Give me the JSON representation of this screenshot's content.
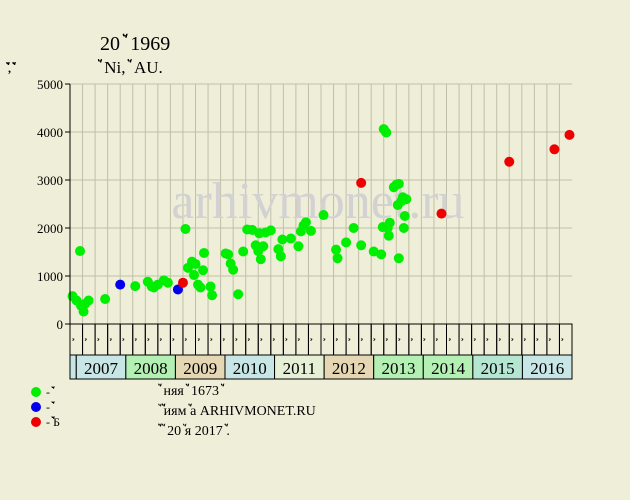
{
  "title_line1": "20 ꙽꙽꙽ 1969",
  "title_line2": "꙽꙽꙽ Ni, ꙽꙽꙽ AU.",
  "y_unit": "꙽꙽, ꙽꙽",
  "watermark": "arhivmonet.ru",
  "colors": {
    "background": "#efefd9",
    "grid": "#c0c0a8",
    "normal": "#00ee00",
    "auction": "#0000ee",
    "special": "#ee0000"
  },
  "legend": [
    {
      "color": "#00ee00",
      "label": "- ꙽꙽꙽"
    },
    {
      "color": "#0000ee",
      "label": "- ꙽꙽꙽"
    },
    {
      "color": "#ee0000",
      "label": "- ꙽꙽꙽꙽Б"
    }
  ],
  "info": [
    "꙽꙽ няя ꙽꙽ 1673 ꙽꙽",
    "꙽ ꙽꙽꙽иям ꙽꙽а ARHIVMONET.RU",
    "꙽꙽꙽ ꙽ 20 ꙽я 2017 ꙽꙽."
  ],
  "chart_data": {
    "type": "scatter",
    "title": "20 ꙽꙽꙽ 1969",
    "ylabel": "꙽꙽, ꙽꙽",
    "ylim": [
      0,
      5000
    ],
    "yticks": [
      0,
      1000,
      2000,
      3000,
      4000,
      5000
    ],
    "x_range": [
      2006.75,
      2016.75
    ],
    "grid": true,
    "period_labels": [
      "꙽꙽",
      "꙽꙽",
      "꙽꙽",
      "꙽꙽",
      "꙽꙽",
      "꙽꙽",
      "꙽꙽",
      "꙽꙽",
      "꙽꙽",
      "꙽꙽",
      "꙽꙽",
      "꙽꙽",
      "꙽꙽",
      "꙽꙽",
      "꙽꙽",
      "꙽꙽",
      "꙽꙽",
      "꙽꙽",
      "꙽꙽",
      "꙽꙽",
      "꙽꙽",
      "꙽꙽",
      "꙽꙽",
      "꙽꙽",
      "꙽꙽",
      "꙽꙽",
      "꙽꙽",
      "꙽꙽",
      "꙽꙽",
      "꙽꙽",
      "꙽꙽",
      "꙽꙽",
      "꙽꙽",
      "꙽꙽",
      "꙽꙽",
      "꙽꙽",
      "꙽꙽",
      "꙽꙽",
      "꙽꙽",
      "꙽꙽"
    ],
    "years": [
      "2007",
      "2008",
      "2009",
      "2010",
      "2011",
      "2012",
      "2013",
      "2014",
      "2015",
      "2016"
    ],
    "year_colors": [
      "#c8e6e6",
      "#b4f0b4",
      "#e6d7b4",
      "#c8e6e6",
      "#e6f0d7",
      "#e6d7b4",
      "#b4f0b4",
      "#b4f0b4",
      "#b4e6d2",
      "#c8e6e6"
    ],
    "first_cell_color": "#c8e6e6",
    "series": [
      {
        "name": "- ꙽꙽꙽",
        "color": "#00ee00",
        "points": [
          [
            2006.8,
            580
          ],
          [
            2006.88,
            490
          ],
          [
            2006.95,
            1520
          ],
          [
            2006.97,
            380
          ],
          [
            2007.02,
            260
          ],
          [
            2007.05,
            420
          ],
          [
            2007.12,
            490
          ],
          [
            2007.45,
            520
          ],
          [
            2008.05,
            790
          ],
          [
            2008.3,
            880
          ],
          [
            2008.38,
            780
          ],
          [
            2008.42,
            760
          ],
          [
            2008.5,
            820
          ],
          [
            2008.62,
            910
          ],
          [
            2008.7,
            860
          ],
          [
            2009.05,
            1980
          ],
          [
            2009.1,
            1170
          ],
          [
            2009.18,
            1300
          ],
          [
            2009.22,
            1020
          ],
          [
            2009.25,
            1250
          ],
          [
            2009.3,
            820
          ],
          [
            2009.35,
            760
          ],
          [
            2009.4,
            1120
          ],
          [
            2009.42,
            1480
          ],
          [
            2009.55,
            780
          ],
          [
            2009.58,
            600
          ],
          [
            2009.85,
            1470
          ],
          [
            2009.9,
            1450
          ],
          [
            2009.95,
            1260
          ],
          [
            2010.0,
            1130
          ],
          [
            2010.1,
            620
          ],
          [
            2010.2,
            1510
          ],
          [
            2010.28,
            1970
          ],
          [
            2010.38,
            1960
          ],
          [
            2010.45,
            1640
          ],
          [
            2010.5,
            1520
          ],
          [
            2010.52,
            1890
          ],
          [
            2010.55,
            1350
          ],
          [
            2010.6,
            1620
          ],
          [
            2010.65,
            1910
          ],
          [
            2010.75,
            1950
          ],
          [
            2010.9,
            1560
          ],
          [
            2010.95,
            1410
          ],
          [
            2010.98,
            1760
          ],
          [
            2011.15,
            1780
          ],
          [
            2011.3,
            1620
          ],
          [
            2011.35,
            1930
          ],
          [
            2011.4,
            2050
          ],
          [
            2011.45,
            2120
          ],
          [
            2011.55,
            1940
          ],
          [
            2011.8,
            2270
          ],
          [
            2012.05,
            1550
          ],
          [
            2012.08,
            1370
          ],
          [
            2012.25,
            1700
          ],
          [
            2012.4,
            2000
          ],
          [
            2012.55,
            1640
          ],
          [
            2012.8,
            1510
          ],
          [
            2012.95,
            1450
          ],
          [
            2012.98,
            2020
          ],
          [
            2013.0,
            4060
          ],
          [
            2013.05,
            3990
          ],
          [
            2013.08,
            2000
          ],
          [
            2013.1,
            1840
          ],
          [
            2013.12,
            2110
          ],
          [
            2013.2,
            2850
          ],
          [
            2013.25,
            2900
          ],
          [
            2013.28,
            2480
          ],
          [
            2013.3,
            2920
          ],
          [
            2013.3,
            1370
          ],
          [
            2013.35,
            2560
          ],
          [
            2013.38,
            2640
          ],
          [
            2013.4,
            2000
          ],
          [
            2013.42,
            2250
          ],
          [
            2013.45,
            2600
          ]
        ]
      },
      {
        "name": "- ꙽꙽꙽",
        "color": "#0000ee",
        "points": [
          [
            2007.75,
            820
          ],
          [
            2008.9,
            720
          ]
        ]
      },
      {
        "name": "- ꙽꙽꙽꙽Б",
        "color": "#ee0000",
        "points": [
          [
            2009.0,
            860
          ],
          [
            2012.55,
            2940
          ],
          [
            2014.15,
            2300
          ],
          [
            2015.5,
            3380
          ],
          [
            2016.4,
            3640
          ],
          [
            2016.7,
            3940
          ]
        ]
      }
    ]
  }
}
